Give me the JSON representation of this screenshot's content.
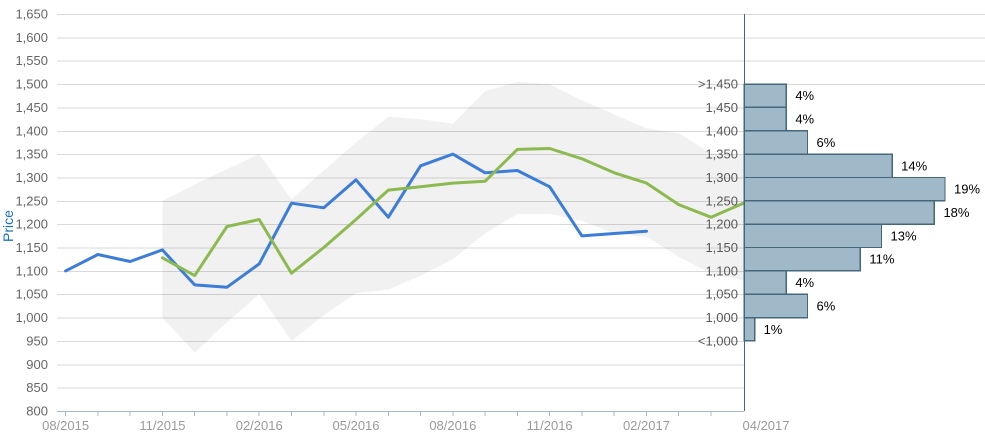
{
  "chart_data": {
    "type": "line",
    "title": "",
    "ylabel": "Price",
    "ylim": [
      800,
      1650
    ],
    "ytick_step": 50,
    "grid": true,
    "legend": "none",
    "xtick_labels": [
      "08/2015",
      "11/2015",
      "02/2016",
      "05/2016",
      "08/2016",
      "11/2016",
      "02/2017"
    ],
    "colors": {
      "blue_line": "#3b7dd8",
      "green_line": "#8cba50",
      "band_fill": "rgba(0,0,0,0.055)",
      "gridline": "#d9d9d9",
      "axis_line": "#a4bad1",
      "y_label_text": "#666666",
      "x_label_text": "#9a9a9a",
      "bin_label_text": "#595959",
      "pct_label_text": "#000000",
      "y_title_text": "#1b74bf",
      "hist_fill": "#9fb9c9",
      "hist_border": "#44677c"
    },
    "series": [
      {
        "id": "blue-series",
        "color": "#3b7dd8",
        "points": [
          [
            "08/2015",
            1100
          ],
          [
            "09/2015",
            1135
          ],
          [
            "10/2015",
            1120
          ],
          [
            "11/2015",
            1145
          ],
          [
            "12/2015",
            1070
          ],
          [
            "01/2016",
            1065
          ],
          [
            "02/2016",
            1115
          ],
          [
            "03/2016",
            1245
          ],
          [
            "04/2016",
            1235
          ],
          [
            "05/2016",
            1295
          ],
          [
            "06/2016",
            1215
          ],
          [
            "07/2016",
            1325
          ],
          [
            "08/2016",
            1350
          ],
          [
            "09/2016",
            1310
          ],
          [
            "10/2016",
            1315
          ],
          [
            "11/2016",
            1280
          ],
          [
            "12/2016",
            1175
          ],
          [
            "01/2017",
            1180
          ],
          [
            "02/2017",
            1185
          ]
        ]
      },
      {
        "id": "green-series",
        "color": "#8cba50",
        "points": [
          [
            "11/2015",
            1128
          ],
          [
            "12/2015",
            1090
          ],
          [
            "01/2016",
            1195
          ],
          [
            "02/2016",
            1210
          ],
          [
            "03/2016",
            1095
          ],
          [
            "04/2016",
            1150
          ],
          [
            "05/2016",
            1210
          ],
          [
            "06/2016",
            1273
          ],
          [
            "07/2016",
            1280
          ],
          [
            "08/2016",
            1288
          ],
          [
            "09/2016",
            1292
          ],
          [
            "10/2016",
            1360
          ],
          [
            "11/2016",
            1362
          ],
          [
            "12/2016",
            1340
          ],
          [
            "01/2017",
            1310
          ],
          [
            "02/2017",
            1288
          ],
          [
            "03/2017",
            1242
          ],
          [
            "04/2017",
            1215
          ],
          [
            "05/2017",
            1245
          ]
        ]
      }
    ],
    "band": {
      "id": "confidence-band",
      "points": [
        [
          "11/2015",
          1000,
          1250
        ],
        [
          "12/2015",
          925,
          1285
        ],
        [
          "01/2016",
          990,
          1318
        ],
        [
          "02/2016",
          1050,
          1350
        ],
        [
          "03/2016",
          950,
          1253
        ],
        [
          "04/2016",
          1005,
          1315
        ],
        [
          "05/2016",
          1052,
          1375
        ],
        [
          "06/2016",
          1060,
          1430
        ],
        [
          "07/2016",
          1090,
          1425
        ],
        [
          "08/2016",
          1125,
          1415
        ],
        [
          "09/2016",
          1180,
          1485
        ],
        [
          "10/2016",
          1222,
          1505
        ],
        [
          "11/2016",
          1222,
          1500
        ],
        [
          "12/2016",
          1207,
          1465
        ],
        [
          "01/2017",
          1180,
          1435
        ],
        [
          "02/2017",
          1173,
          1405
        ],
        [
          "03/2017",
          1130,
          1395
        ],
        [
          "04/2017",
          1095,
          1352
        ],
        [
          "05/2017",
          1080,
          1348
        ]
      ]
    },
    "histogram": {
      "x_label": "04/2017",
      "bin_boundary_labels": [
        ">1,450",
        "1,450",
        "1,400",
        "1,350",
        "1,300",
        "1,250",
        "1,200",
        "1,150",
        "1,100",
        "1,050",
        "1,000",
        "<1,000"
      ],
      "bin_boundary_values": [
        1500,
        1450,
        1400,
        1350,
        1300,
        1250,
        1200,
        1150,
        1100,
        1050,
        1000,
        950
      ],
      "percentages": [
        4,
        4,
        6,
        14,
        19,
        18,
        13,
        11,
        4,
        6,
        1
      ],
      "pct_labels": [
        "4%",
        "4%",
        "6%",
        "14%",
        "19%",
        "18%",
        "13%",
        "11%",
        "4%",
        "6%",
        "1%"
      ]
    }
  }
}
